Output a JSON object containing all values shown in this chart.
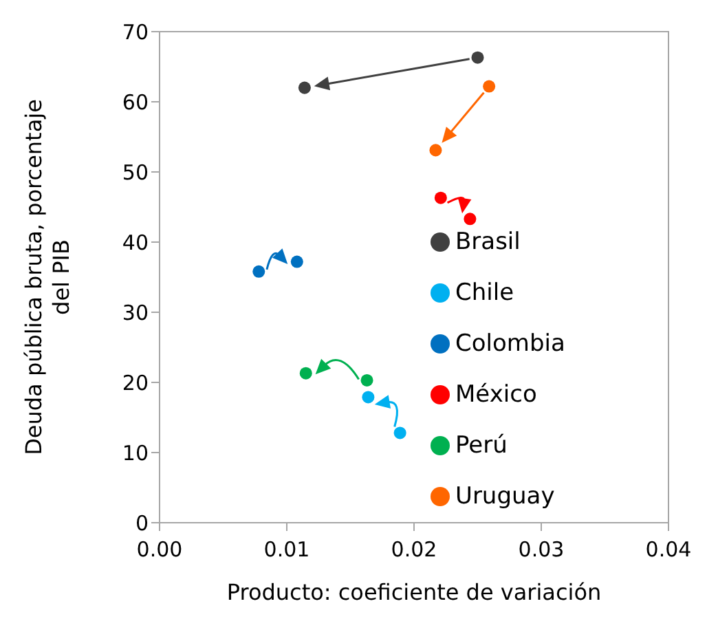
{
  "chart_data": {
    "type": "scatter",
    "xlabel": "Producto: coeficiente  de variación",
    "ylabel": "Deuda pública bruta, porcentaje del PIB",
    "xlim": [
      0,
      0.04
    ],
    "xticks": [
      {
        "value": 0,
        "label": "0.00"
      },
      {
        "value": 0.01,
        "label": "0.01"
      },
      {
        "value": 0.02,
        "label": "0.02"
      },
      {
        "value": 0.03,
        "label": "0.03"
      },
      {
        "value": 0.04,
        "label": "0.04"
      }
    ],
    "ylim": [
      0,
      70
    ],
    "yticks": [
      0,
      10,
      20,
      30,
      40,
      50,
      60,
      70
    ],
    "grid": false,
    "legend": "right",
    "marker": "circle",
    "series": [
      {
        "name": "Brasil",
        "color": "#404040",
        "x": [
          0.025,
          0.0114
        ],
        "values": [
          66.3,
          62.0
        ]
      },
      {
        "name": "Chile",
        "color": "#00b0f0",
        "x": [
          0.0189,
          0.0164
        ],
        "values": [
          12.8,
          17.9
        ]
      },
      {
        "name": "Colombia",
        "color": "#0070c0",
        "x": [
          0.0078,
          0.0108
        ],
        "values": [
          35.8,
          37.2
        ]
      },
      {
        "name": "México",
        "color": "#ff0000",
        "x": [
          0.0221,
          0.0244
        ],
        "values": [
          46.3,
          43.3
        ]
      },
      {
        "name": "Perú",
        "color": "#00b050",
        "x": [
          0.0163,
          0.0115
        ],
        "values": [
          20.3,
          21.3
        ]
      },
      {
        "name": "Uruguay",
        "color": "#ff6600",
        "x": [
          0.0259,
          0.0217
        ],
        "values": [
          62.2,
          53.1
        ]
      }
    ]
  }
}
